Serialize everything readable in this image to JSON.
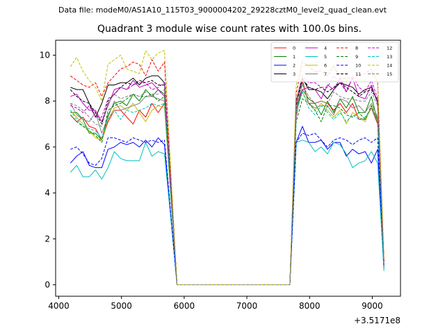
{
  "chart_data": {
    "type": "line",
    "suptitle": "Data file: modeM0/AS1A10_115T03_9000004202_29228cztM0_level2_quad_clean.evt",
    "title": "Quadrant 3 module wise count rates with 100.0s bins.",
    "xlabel": "",
    "ylabel": "",
    "offset_label": "+3.5171e8",
    "xlim": [
      3950,
      9450
    ],
    "ylim": [
      -0.5,
      10.65
    ],
    "xticks": [
      4000,
      5000,
      6000,
      7000,
      8000,
      9000
    ],
    "xtick_labels": [
      "4000",
      "5000",
      "6000",
      "7000",
      "8000",
      "9000"
    ],
    "yticks": [
      0,
      2,
      4,
      6,
      8,
      10
    ],
    "ytick_labels": [
      "0",
      "2",
      "4",
      "6",
      "8",
      "10"
    ],
    "legend_location": "upper-right",
    "x": [
      4186,
      4286,
      4386,
      4486,
      4586,
      4686,
      4786,
      4886,
      4986,
      5086,
      5186,
      5286,
      5386,
      5486,
      5586,
      5686,
      5786,
      5886,
      5986,
      6086,
      6186,
      6286,
      6386,
      6486,
      6586,
      6686,
      6786,
      6886,
      6986,
      7086,
      7186,
      7286,
      7386,
      7486,
      7586,
      7686,
      7786,
      7886,
      7986,
      8086,
      8186,
      8286,
      8386,
      8486,
      8586,
      8686,
      8786,
      8886,
      8986,
      9086,
      9186
    ],
    "series": [
      {
        "name": "0",
        "color": "#ff0000",
        "dash": "solid",
        "values": [
          7.4,
          7.1,
          7.3,
          6.9,
          6.8,
          6.3,
          7.1,
          7.6,
          7.6,
          7.3,
          7.0,
          7.6,
          7.3,
          7.9,
          7.5,
          7.9,
          3.9,
          0,
          0,
          0,
          0,
          0,
          0,
          0,
          0,
          0,
          0,
          0,
          0,
          0,
          0,
          0,
          0,
          0,
          0,
          0,
          7.3,
          8.9,
          7.9,
          7.9,
          8.0,
          7.9,
          7.6,
          7.9,
          7.5,
          7.9,
          7.2,
          7.2,
          7.7,
          7.0,
          0.8
        ]
      },
      {
        "name": "1",
        "color": "#008000",
        "dash": "solid",
        "values": [
          7.5,
          7.5,
          7.2,
          6.6,
          6.6,
          6.3,
          7.4,
          7.9,
          8.0,
          7.8,
          8.3,
          8.0,
          8.5,
          8.2,
          8.5,
          8.3,
          3.9,
          0,
          0,
          0,
          0,
          0,
          0,
          0,
          0,
          0,
          0,
          0,
          0,
          0,
          0,
          0,
          0,
          0,
          0,
          0,
          7.6,
          8.5,
          8.1,
          7.9,
          7.4,
          8.0,
          7.5,
          8.1,
          7.7,
          8.2,
          7.5,
          7.5,
          8.2,
          7.1,
          0.8
        ]
      },
      {
        "name": "2",
        "color": "#0000ff",
        "dash": "solid",
        "values": [
          5.3,
          5.6,
          5.8,
          5.2,
          5.1,
          5.1,
          5.9,
          6.0,
          6.2,
          6.1,
          6.2,
          6.0,
          6.3,
          6.0,
          6.4,
          6.1,
          3.0,
          0,
          0,
          0,
          0,
          0,
          0,
          0,
          0,
          0,
          0,
          0,
          0,
          0,
          0,
          0,
          0,
          0,
          0,
          0,
          6.2,
          6.9,
          6.2,
          6.2,
          6.3,
          5.9,
          6.2,
          6.2,
          5.6,
          5.9,
          5.7,
          5.8,
          5.3,
          5.9,
          0.7
        ]
      },
      {
        "name": "3",
        "color": "#000000",
        "dash": "solid",
        "values": [
          8.6,
          8.5,
          8.5,
          7.9,
          7.3,
          7.9,
          8.7,
          8.7,
          8.8,
          8.8,
          9.0,
          8.7,
          9.0,
          9.1,
          9.1,
          8.8,
          4.4,
          0,
          0,
          0,
          0,
          0,
          0,
          0,
          0,
          0,
          0,
          0,
          0,
          0,
          0,
          0,
          0,
          0,
          0,
          0,
          8.0,
          9.0,
          8.5,
          8.5,
          8.4,
          8.1,
          8.5,
          8.8,
          8.7,
          8.6,
          8.3,
          8.5,
          8.6,
          8.0,
          1.0
        ]
      },
      {
        "name": "4",
        "color": "#c000c0",
        "dash": "solid",
        "values": [
          8.2,
          8.3,
          7.9,
          7.6,
          7.6,
          7.1,
          7.8,
          8.5,
          8.6,
          8.5,
          8.9,
          8.6,
          8.7,
          8.8,
          8.5,
          8.2,
          4.2,
          0,
          0,
          0,
          0,
          0,
          0,
          0,
          0,
          0,
          0,
          0,
          0,
          0,
          0,
          0,
          0,
          0,
          0,
          0,
          7.8,
          8.5,
          8.6,
          8.5,
          8.1,
          8.7,
          8.5,
          9.0,
          8.4,
          9.0,
          8.2,
          8.1,
          8.7,
          7.9,
          1.0
        ]
      },
      {
        "name": "5",
        "color": "#00c0c0",
        "dash": "solid",
        "values": [
          4.9,
          5.2,
          4.7,
          4.7,
          5.0,
          4.6,
          5.1,
          5.8,
          5.5,
          5.4,
          5.4,
          5.4,
          6.2,
          5.6,
          5.8,
          5.7,
          2.9,
          0,
          0,
          0,
          0,
          0,
          0,
          0,
          0,
          0,
          0,
          0,
          0,
          0,
          0,
          0,
          0,
          0,
          0,
          0,
          6.2,
          6.3,
          6.2,
          5.8,
          6.0,
          5.7,
          6.2,
          6.1,
          5.7,
          5.1,
          5.3,
          5.4,
          5.8,
          5.3,
          0.6
        ]
      },
      {
        "name": "6",
        "color": "#bfbf00",
        "dash": "solid",
        "values": [
          7.6,
          7.3,
          7.0,
          6.7,
          6.4,
          6.3,
          7.2,
          7.7,
          7.8,
          7.6,
          7.9,
          7.5,
          7.1,
          7.6,
          7.8,
          7.7,
          3.9,
          0,
          0,
          0,
          0,
          0,
          0,
          0,
          0,
          0,
          0,
          0,
          0,
          0,
          0,
          0,
          0,
          0,
          0,
          0,
          7.5,
          8.4,
          7.9,
          7.6,
          7.9,
          7.6,
          7.3,
          7.6,
          7.0,
          7.5,
          7.3,
          7.1,
          7.8,
          7.1,
          0.8
        ]
      },
      {
        "name": "7",
        "color": "#808080",
        "dash": "solid",
        "values": [
          7.9,
          7.4,
          7.2,
          7.1,
          7.5,
          6.6,
          7.3,
          8.0,
          7.6,
          7.7,
          7.8,
          7.9,
          8.2,
          8.2,
          8.1,
          8.0,
          4.0,
          0,
          0,
          0,
          0,
          0,
          0,
          0,
          0,
          0,
          0,
          0,
          0,
          0,
          0,
          0,
          0,
          0,
          0,
          0,
          7.6,
          8.8,
          7.9,
          7.7,
          7.8,
          7.8,
          7.4,
          8.1,
          8.0,
          7.7,
          7.8,
          7.5,
          7.9,
          7.3,
          0.9
        ]
      },
      {
        "name": "8",
        "color": "#ff0000",
        "dash": "dashed",
        "values": [
          9.1,
          8.9,
          8.7,
          8.6,
          8.8,
          8.2,
          8.8,
          9.1,
          9.4,
          9.5,
          9.7,
          9.6,
          9.1,
          9.8,
          9.3,
          9.7,
          4.8,
          0,
          0,
          0,
          0,
          0,
          0,
          0,
          0,
          0,
          0,
          0,
          0,
          0,
          0,
          0,
          0,
          0,
          0,
          0,
          8.3,
          9.7,
          9.5,
          9.3,
          9.3,
          9.1,
          9.5,
          9.0,
          9.0,
          9.0,
          9.1,
          9.2,
          9.4,
          8.8,
          1.1
        ]
      },
      {
        "name": "9",
        "color": "#008000",
        "dash": "dashed",
        "values": [
          7.4,
          7.1,
          6.9,
          6.7,
          6.5,
          6.2,
          7.6,
          7.8,
          7.9,
          8.1,
          8.3,
          8.2,
          8.2,
          8.3,
          8.0,
          8.2,
          4.1,
          0,
          0,
          0,
          0,
          0,
          0,
          0,
          0,
          0,
          0,
          0,
          0,
          0,
          0,
          0,
          0,
          0,
          0,
          0,
          7.1,
          8.1,
          7.9,
          7.6,
          7.1,
          7.8,
          7.8,
          7.7,
          7.4,
          7.3,
          7.5,
          7.2,
          7.8,
          7.1,
          0.8
        ]
      },
      {
        "name": "10",
        "color": "#0000ff",
        "dash": "dashed",
        "values": [
          5.9,
          6.0,
          5.7,
          5.3,
          5.2,
          5.5,
          6.4,
          6.4,
          6.3,
          6.2,
          6.4,
          6.3,
          6.2,
          6.3,
          6.2,
          6.3,
          3.1,
          0,
          0,
          0,
          0,
          0,
          0,
          0,
          0,
          0,
          0,
          0,
          0,
          0,
          0,
          0,
          0,
          0,
          0,
          0,
          6.2,
          6.6,
          6.5,
          6.6,
          6.3,
          6.0,
          6.3,
          6.4,
          6.3,
          6.1,
          6.3,
          6.4,
          6.2,
          6.4,
          0.8
        ]
      },
      {
        "name": "11",
        "color": "#000000",
        "dash": "dashed",
        "values": [
          8.5,
          8.2,
          8.0,
          7.9,
          7.5,
          7.0,
          8.0,
          8.3,
          8.6,
          8.8,
          8.7,
          8.9,
          8.8,
          8.9,
          8.7,
          8.7,
          4.3,
          0,
          0,
          0,
          0,
          0,
          0,
          0,
          0,
          0,
          0,
          0,
          0,
          0,
          0,
          0,
          0,
          0,
          0,
          0,
          7.8,
          9.0,
          8.6,
          8.5,
          8.6,
          8.4,
          8.6,
          8.8,
          8.6,
          8.4,
          8.2,
          8.4,
          8.5,
          8.0,
          1.0
        ]
      },
      {
        "name": "12",
        "color": "#c000c0",
        "dash": "dashed",
        "values": [
          7.8,
          7.7,
          7.5,
          7.8,
          7.3,
          7.3,
          8.1,
          8.3,
          8.6,
          8.5,
          8.7,
          8.8,
          8.8,
          8.5,
          8.6,
          8.8,
          4.3,
          0,
          0,
          0,
          0,
          0,
          0,
          0,
          0,
          0,
          0,
          0,
          0,
          0,
          0,
          0,
          0,
          0,
          0,
          0,
          8.0,
          9.1,
          8.8,
          8.8,
          8.6,
          8.6,
          9.1,
          8.8,
          8.4,
          9.1,
          8.6,
          8.4,
          8.9,
          8.1,
          1.0
        ]
      },
      {
        "name": "13",
        "color": "#00c0c0",
        "dash": "dashed",
        "values": [
          7.6,
          7.2,
          6.9,
          6.8,
          6.7,
          6.4,
          7.2,
          7.6,
          7.2,
          7.6,
          7.5,
          7.6,
          7.7,
          7.9,
          7.8,
          7.9,
          4.0,
          0,
          0,
          0,
          0,
          0,
          0,
          0,
          0,
          0,
          0,
          0,
          0,
          0,
          0,
          0,
          0,
          0,
          0,
          0,
          7.5,
          8.4,
          7.7,
          7.4,
          7.8,
          7.5,
          7.2,
          7.5,
          7.1,
          7.4,
          7.2,
          7.3,
          7.7,
          7.1,
          0.8
        ]
      },
      {
        "name": "14",
        "color": "#bfbf00",
        "dash": "dashed",
        "values": [
          9.5,
          9.9,
          9.3,
          8.9,
          8.6,
          8.0,
          9.6,
          9.8,
          10.0,
          9.4,
          9.3,
          9.2,
          10.2,
          9.8,
          10.1,
          10.2,
          5.0,
          0,
          0,
          0,
          0,
          0,
          0,
          0,
          0,
          0,
          0,
          0,
          0,
          0,
          0,
          0,
          0,
          0,
          0,
          0,
          8.7,
          9.8,
          9.5,
          9.2,
          9.4,
          9.2,
          9.6,
          9.0,
          8.9,
          9.0,
          8.9,
          8.9,
          9.3,
          8.8,
          1.1
        ]
      },
      {
        "name": "15",
        "color": "#808080",
        "dash": "dashed",
        "values": [
          7.9,
          7.8,
          7.6,
          7.3,
          7.0,
          6.9,
          7.9,
          8.3,
          8.1,
          8.2,
          8.3,
          8.2,
          8.4,
          8.3,
          8.3,
          8.5,
          4.2,
          0,
          0,
          0,
          0,
          0,
          0,
          0,
          0,
          0,
          0,
          0,
          0,
          0,
          0,
          0,
          0,
          0,
          0,
          0,
          7.9,
          8.7,
          8.2,
          7.9,
          8.0,
          7.9,
          8.4,
          8.2,
          8.1,
          8.1,
          8.0,
          8.0,
          8.4,
          7.8,
          0.9
        ]
      }
    ]
  }
}
